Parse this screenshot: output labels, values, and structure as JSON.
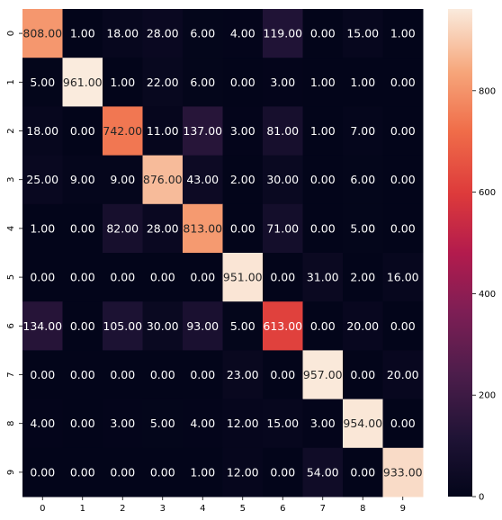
{
  "chart_data": {
    "type": "heatmap",
    "title": "",
    "xlabel": "",
    "ylabel": "",
    "x_categories": [
      "0",
      "1",
      "2",
      "3",
      "4",
      "5",
      "6",
      "7",
      "8",
      "9"
    ],
    "y_categories": [
      "0",
      "1",
      "2",
      "3",
      "4",
      "5",
      "6",
      "7",
      "8",
      "9"
    ],
    "value_format": "0.00",
    "values": [
      [
        808.0,
        1.0,
        18.0,
        28.0,
        6.0,
        4.0,
        119.0,
        0.0,
        15.0,
        1.0
      ],
      [
        5.0,
        961.0,
        1.0,
        22.0,
        6.0,
        0.0,
        3.0,
        1.0,
        1.0,
        0.0
      ],
      [
        18.0,
        0.0,
        742.0,
        11.0,
        137.0,
        3.0,
        81.0,
        1.0,
        7.0,
        0.0
      ],
      [
        25.0,
        9.0,
        9.0,
        876.0,
        43.0,
        2.0,
        30.0,
        0.0,
        6.0,
        0.0
      ],
      [
        1.0,
        0.0,
        82.0,
        28.0,
        813.0,
        0.0,
        71.0,
        0.0,
        5.0,
        0.0
      ],
      [
        0.0,
        0.0,
        0.0,
        0.0,
        0.0,
        951.0,
        0.0,
        31.0,
        2.0,
        16.0
      ],
      [
        134.0,
        0.0,
        105.0,
        30.0,
        93.0,
        5.0,
        613.0,
        0.0,
        20.0,
        0.0
      ],
      [
        0.0,
        0.0,
        0.0,
        0.0,
        0.0,
        23.0,
        0.0,
        957.0,
        0.0,
        20.0
      ],
      [
        4.0,
        0.0,
        3.0,
        5.0,
        4.0,
        12.0,
        15.0,
        3.0,
        954.0,
        0.0
      ],
      [
        0.0,
        0.0,
        0.0,
        0.0,
        1.0,
        12.0,
        0.0,
        54.0,
        0.0,
        933.0
      ]
    ],
    "colorscale": {
      "name": "rocket",
      "min": 0,
      "max": 961,
      "ticks": [
        "0",
        "200",
        "400",
        "600",
        "800"
      ],
      "tick_values": [
        0,
        200,
        400,
        600,
        800
      ]
    },
    "grid": false,
    "legend": "colorbar-right"
  }
}
